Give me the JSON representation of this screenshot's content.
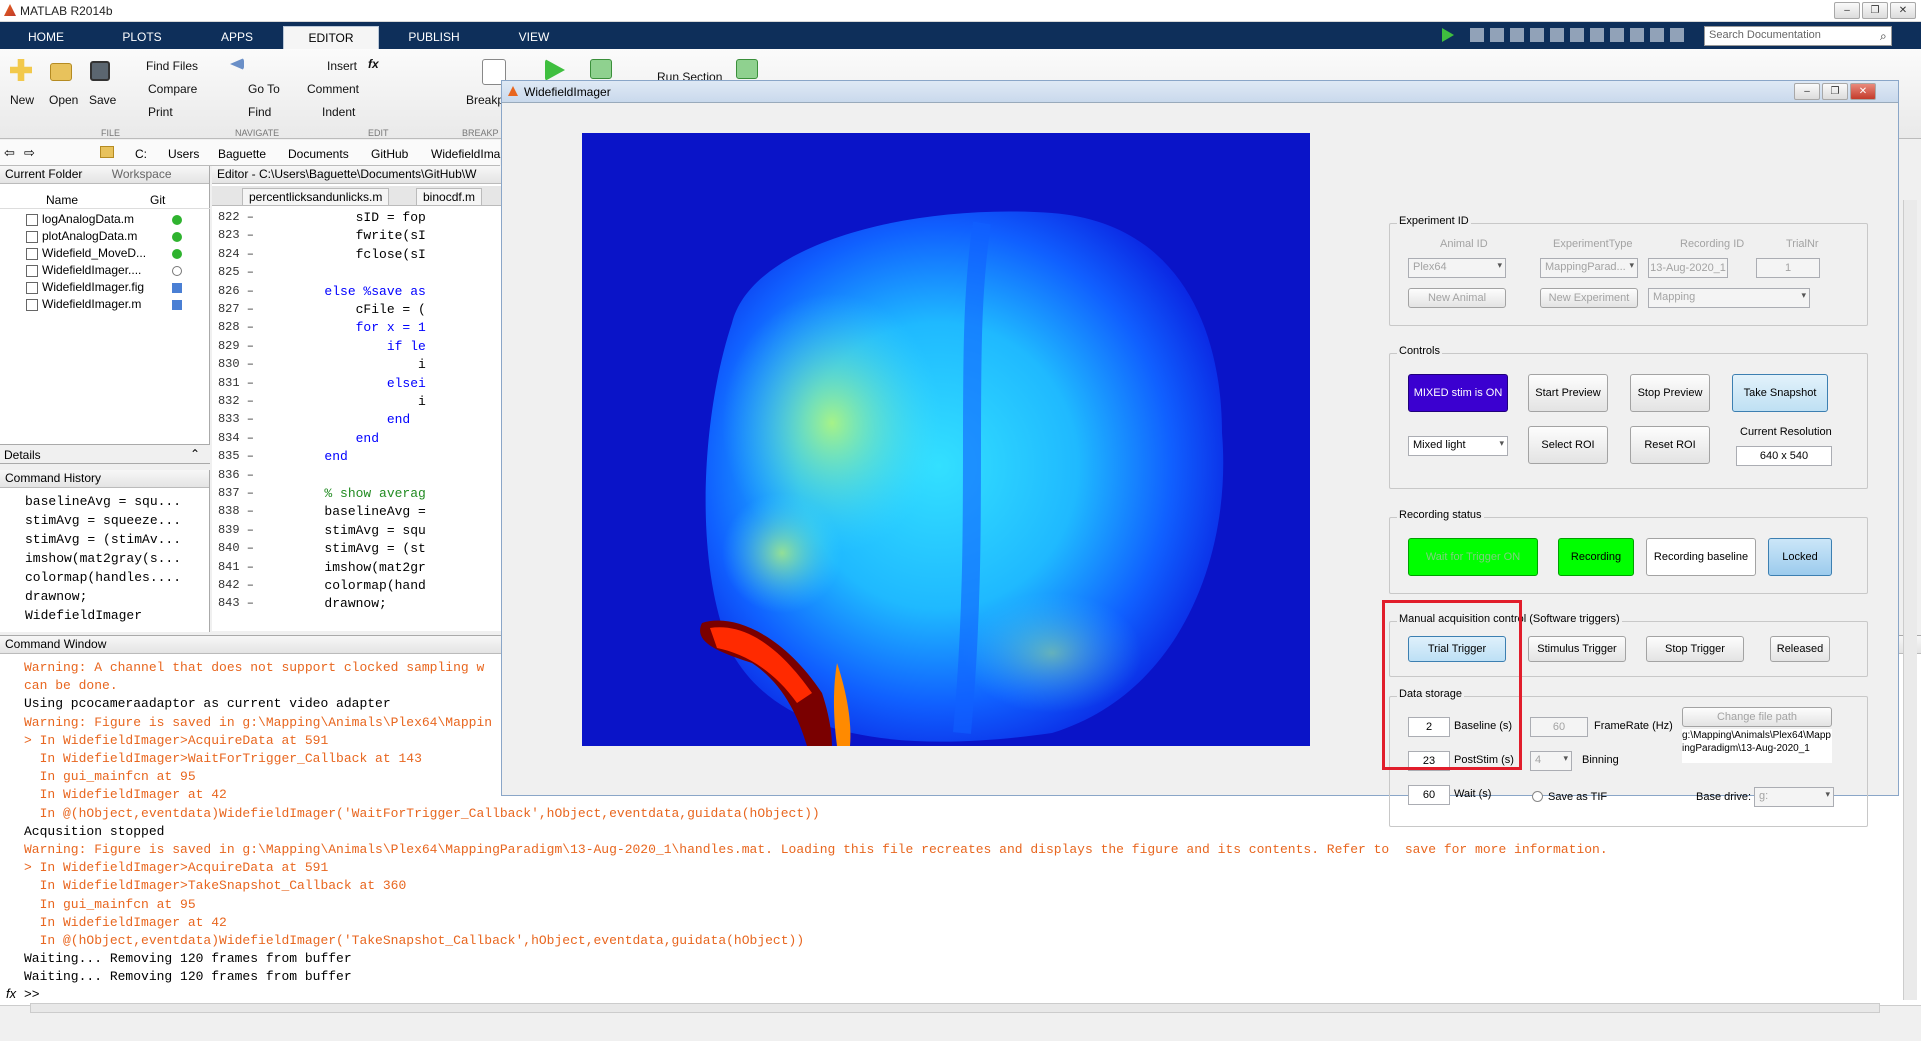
{
  "app": {
    "title": "MATLAB R2014b"
  },
  "tabs": [
    "HOME",
    "PLOTS",
    "APPS",
    "EDITOR",
    "PUBLISH",
    "VIEW"
  ],
  "search_placeholder": "Search Documentation",
  "ribbon": {
    "file": {
      "new": "New",
      "open": "Open",
      "save": "Save",
      "find_files": "Find Files",
      "compare": "Compare",
      "print": "Print",
      "group": "FILE"
    },
    "navigate": {
      "go_to": "Go To",
      "find": "Find",
      "group": "NAVIGATE"
    },
    "edit": {
      "insert": "Insert",
      "comment": "Comment",
      "indent": "Indent",
      "fx": "fx",
      "group": "EDIT"
    },
    "breakpoints": {
      "label": "Breakp",
      "group": "BREAKP"
    },
    "run_section": "Run Section"
  },
  "path": [
    "C:",
    "Users",
    "Baguette",
    "Documents",
    "GitHub",
    "WidefieldIma"
  ],
  "current_folder": {
    "title": "Current Folder",
    "workspace_tab": "Workspace",
    "col_name": "Name",
    "col_git": "Git",
    "files": [
      {
        "name": "logAnalogData.m",
        "git": "#2fb32f"
      },
      {
        "name": "plotAnalogData.m",
        "git": "#2fb32f"
      },
      {
        "name": "Widefield_MoveD...",
        "git": "#2fb32f"
      },
      {
        "name": "WidefieldImager....",
        "git": "none"
      },
      {
        "name": "WidefieldImager.fig",
        "git": "#4a7fd4"
      },
      {
        "name": "WidefieldImager.m",
        "git": "#4a7fd4"
      }
    ]
  },
  "details": {
    "title": "Details"
  },
  "command_history": {
    "title": "Command History",
    "lines": [
      "baselineAvg = squ...",
      "stimAvg = squeeze...",
      "stimAvg = (stimAv...",
      "imshow(mat2gray(s...",
      "colormap(handles....",
      "drawnow;",
      "WidefieldImager"
    ]
  },
  "editor": {
    "title": "Editor - C:\\Users\\Baguette\\Documents\\GitHub\\W",
    "tabs": [
      "percentlicksandunlicks.m",
      "binocdf.m"
    ],
    "lines": [
      {
        "n": "822",
        "code": "            sID = fop"
      },
      {
        "n": "823",
        "code": "            fwrite(sI"
      },
      {
        "n": "824",
        "code": "            fclose(sI"
      },
      {
        "n": "825",
        "code": ""
      },
      {
        "n": "826",
        "code": "        else %save as"
      },
      {
        "n": "827",
        "code": "            cFile = ("
      },
      {
        "n": "828",
        "code": "            for x = 1"
      },
      {
        "n": "829",
        "code": "                if le"
      },
      {
        "n": "830",
        "code": "                    i"
      },
      {
        "n": "831",
        "code": "                elsei"
      },
      {
        "n": "832",
        "code": "                    i"
      },
      {
        "n": "833",
        "code": "                end"
      },
      {
        "n": "834",
        "code": "            end"
      },
      {
        "n": "835",
        "code": "        end"
      },
      {
        "n": "836",
        "code": ""
      },
      {
        "n": "837",
        "code": "        % show averag"
      },
      {
        "n": "838",
        "code": "        baselineAvg ="
      },
      {
        "n": "839",
        "code": "        stimAvg = squ"
      },
      {
        "n": "840",
        "code": "        stimAvg = (st"
      },
      {
        "n": "841",
        "code": "        imshow(mat2gr"
      },
      {
        "n": "842",
        "code": "        colormap(hand"
      },
      {
        "n": "843",
        "code": "        drawnow;"
      }
    ]
  },
  "command_window": {
    "title": "Command Window",
    "prompt": ">>",
    "lines": [
      {
        "text": "Warning: A channel that does not support clocked sampling w",
        "cls": "warn"
      },
      {
        "text": "can be done.",
        "cls": "warn"
      },
      {
        "text": "Using pcocameraadaptor as current video adapter",
        "cls": ""
      },
      {
        "text": "Warning: Figure is saved in g:\\Mapping\\Animals\\Plex64\\Mappin",
        "cls": "warn"
      },
      {
        "text": "> In WidefieldImager>AcquireData at 591",
        "cls": "warn"
      },
      {
        "text": "  In WidefieldImager>WaitForTrigger_Callback at 143",
        "cls": "warn"
      },
      {
        "text": "  In gui_mainfcn at 95",
        "cls": "warn"
      },
      {
        "text": "  In WidefieldImager at 42",
        "cls": "warn"
      },
      {
        "text": "  In @(hObject,eventdata)WidefieldImager('WaitForTrigger_Callback',hObject,eventdata,guidata(hObject))",
        "cls": "warn"
      },
      {
        "text": "Acqusition stopped",
        "cls": ""
      },
      {
        "text": "Warning: Figure is saved in g:\\Mapping\\Animals\\Plex64\\MappingParadigm\\13-Aug-2020_1\\handles.mat. Loading this file recreates and displays the figure and its contents. Refer to  save for more information.",
        "cls": "warn"
      },
      {
        "text": "> In WidefieldImager>AcquireData at 591",
        "cls": "warn"
      },
      {
        "text": "  In WidefieldImager>TakeSnapshot_Callback at 360",
        "cls": "warn"
      },
      {
        "text": "  In gui_mainfcn at 95",
        "cls": "warn"
      },
      {
        "text": "  In WidefieldImager at 42",
        "cls": "warn"
      },
      {
        "text": "  In @(hObject,eventdata)WidefieldImager('TakeSnapshot_Callback',hObject,eventdata,guidata(hObject))",
        "cls": "warn"
      },
      {
        "text": "Waiting... Removing 120 frames from buffer",
        "cls": ""
      },
      {
        "text": "Waiting... Removing 120 frames from buffer",
        "cls": ""
      }
    ]
  },
  "gui": {
    "title": "WidefieldImager",
    "experiment_id": {
      "title": "Experiment ID",
      "animal_id_label": "Animal ID",
      "experiment_type_label": "ExperimentType",
      "recording_id_label": "Recording ID",
      "trial_nr_label": "TrialNr",
      "animal_id": "Plex64",
      "experiment_type": "MappingParad...",
      "recording_id": "13-Aug-2020_1",
      "trial_nr": "1",
      "new_animal": "New Animal",
      "new_experiment": "New Experiment",
      "paradigm": "Mapping"
    },
    "controls": {
      "title": "Controls",
      "mixed_stim": "MIXED stim is ON",
      "start_preview": "Start Preview",
      "stop_preview": "Stop Preview",
      "take_snapshot": "Take Snapshot",
      "light_mode": "Mixed light",
      "select_roi": "Select ROI",
      "reset_roi": "Reset ROI",
      "current_resolution_label": "Current Resolution",
      "current_resolution": "640 x 540"
    },
    "recording_status": {
      "title": "Recording status",
      "wait_for_trigger": "Wait for Trigger ON",
      "recording": "Recording",
      "recording_baseline": "Recording baseline",
      "locked": "Locked"
    },
    "manual": {
      "title": "Manual acquisition control (Software triggers)",
      "trial_trigger": "Trial Trigger",
      "stimulus_trigger": "Stimulus Trigger",
      "stop_trigger": "Stop Trigger",
      "released": "Released"
    },
    "data_storage": {
      "title": "Data storage",
      "baseline_value": "2",
      "baseline_label": "Baseline (s)",
      "poststim_value": "23",
      "poststim_label": "PostStim (s)",
      "wait_value": "60",
      "wait_label": "Wait (s)",
      "framerate_value": "60",
      "framerate_label": "FrameRate (Hz)",
      "binning_value": "4",
      "binning_label": "Binning",
      "save_tif_label": "Save as TIF",
      "change_path": "Change file path",
      "file_path": "g:\\Mapping\\Animals\\Plex64\\MappingParadigm\\13-Aug-2020_1",
      "base_drive_label": "Base drive:",
      "base_drive": "g:"
    }
  }
}
